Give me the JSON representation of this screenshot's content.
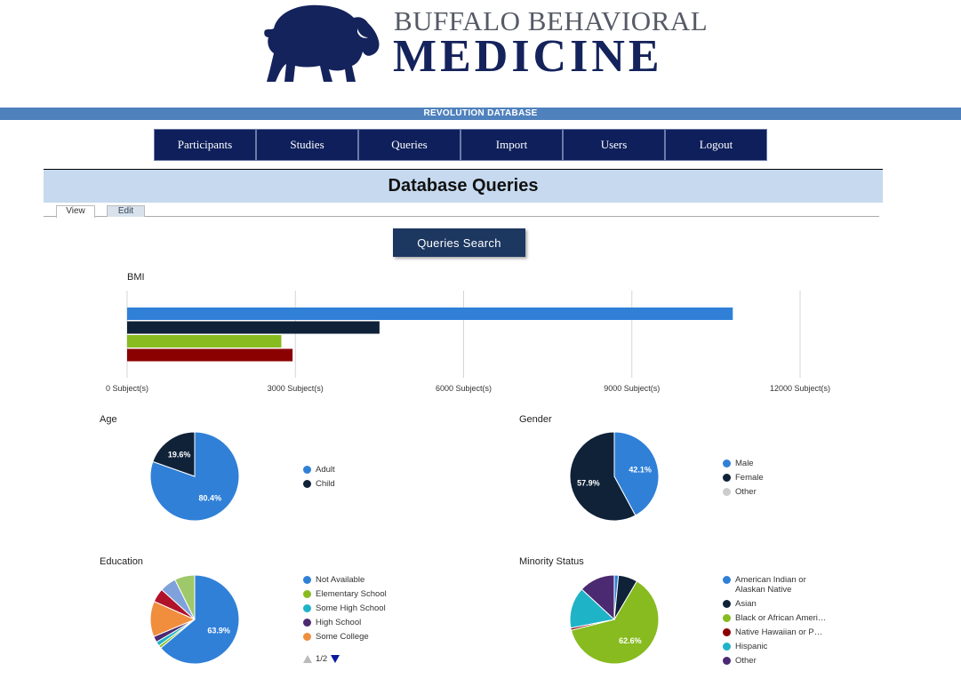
{
  "header": {
    "brand_top": "BUFFALO BEHAVIORAL",
    "brand_bottom": "MEDICINE",
    "banner": "REVOLUTION DATABASE"
  },
  "nav": {
    "items": [
      "Participants",
      "Studies",
      "Queries",
      "Import",
      "Users",
      "Logout"
    ]
  },
  "page": {
    "title": "Database Queries",
    "tabs": [
      "View",
      "Edit"
    ],
    "search_button": "Queries Search"
  },
  "colors": {
    "nav_bg": "#0e1f5b",
    "banner": "#4f81bd",
    "title_bar": "#c6d9ef",
    "series_blue": "#3080d8",
    "series_navy": "#0f2238",
    "series_green": "#87bb1f",
    "series_darkred": "#8b0000",
    "series_teal": "#1fb3c8",
    "series_purple": "#4b2a72",
    "series_orange": "#f08e3e",
    "series_lightgray": "#cccccc"
  },
  "chart_data": [
    {
      "type": "bar",
      "title": "BMI",
      "orientation": "horizontal",
      "values": [
        10800,
        4500,
        2750,
        2950
      ],
      "colors": [
        "#3080d8",
        "#0f2238",
        "#87bb1f",
        "#8b0000"
      ],
      "xlim": [
        0,
        12000
      ],
      "ticks": [
        0,
        3000,
        6000,
        9000,
        12000
      ],
      "tick_labels": [
        "0 Subject(s)",
        "3000 Subject(s)",
        "6000 Subject(s)",
        "9000 Subject(s)",
        "12000 Subject(s)"
      ],
      "grid": true
    },
    {
      "type": "pie",
      "title": "Age",
      "slices": [
        {
          "label": "Adult",
          "value": 80.4,
          "color": "#3080d8",
          "text": "80.4%"
        },
        {
          "label": "Child",
          "value": 19.6,
          "color": "#0f2238",
          "text": "19.6%"
        }
      ],
      "legend": "right"
    },
    {
      "type": "pie",
      "title": "Gender",
      "slices": [
        {
          "label": "Male",
          "value": 42.1,
          "color": "#3080d8",
          "text": "42.1%"
        },
        {
          "label": "Female",
          "value": 57.9,
          "color": "#0f2238",
          "text": "57.9%"
        },
        {
          "label": "Other",
          "value": 0,
          "color": "#cccccc",
          "text": ""
        }
      ],
      "legend": "right"
    },
    {
      "type": "pie",
      "title": "Education",
      "slices": [
        {
          "label": "Not Available",
          "value": 63.9,
          "color": "#3080d8",
          "text": "63.9%"
        },
        {
          "label": "Elementary School",
          "value": 1.0,
          "color": "#87bb1f",
          "text": ""
        },
        {
          "label": "Some High School",
          "value": 1.6,
          "color": "#1fb3c8",
          "text": ""
        },
        {
          "label": "High School",
          "value": 2.2,
          "color": "#4b2a72",
          "text": ""
        },
        {
          "label": "Some College",
          "value": 13.0,
          "color": "#f08e3e",
          "text": ""
        },
        {
          "label": "",
          "value": 5.0,
          "color": "#b0122a",
          "text": ""
        },
        {
          "label": "",
          "value": 6.0,
          "color": "#7fa2dc",
          "text": ""
        },
        {
          "label": "",
          "value": 7.3,
          "color": "#9fc86a",
          "text": ""
        }
      ],
      "legend": "right",
      "legend_page": "1/2"
    },
    {
      "type": "pie",
      "title": "Minority Status",
      "slices": [
        {
          "label": "American Indian or Alaskan Native",
          "value": 1.5,
          "color": "#3080d8",
          "text": ""
        },
        {
          "label": "Asian",
          "value": 7.0,
          "color": "#0f2238",
          "text": ""
        },
        {
          "label": "Black or African Ameri…",
          "value": 62.6,
          "color": "#87bb1f",
          "text": "62.6%"
        },
        {
          "label": "Native Hawaiian or P…",
          "value": 0.8,
          "color": "#8b0000",
          "text": ""
        },
        {
          "label": "Hispanic",
          "value": 15.0,
          "color": "#1fb3c8",
          "text": ""
        },
        {
          "label": "Other",
          "value": 13.1,
          "color": "#4b2a72",
          "text": ""
        }
      ],
      "legend": "right"
    }
  ]
}
